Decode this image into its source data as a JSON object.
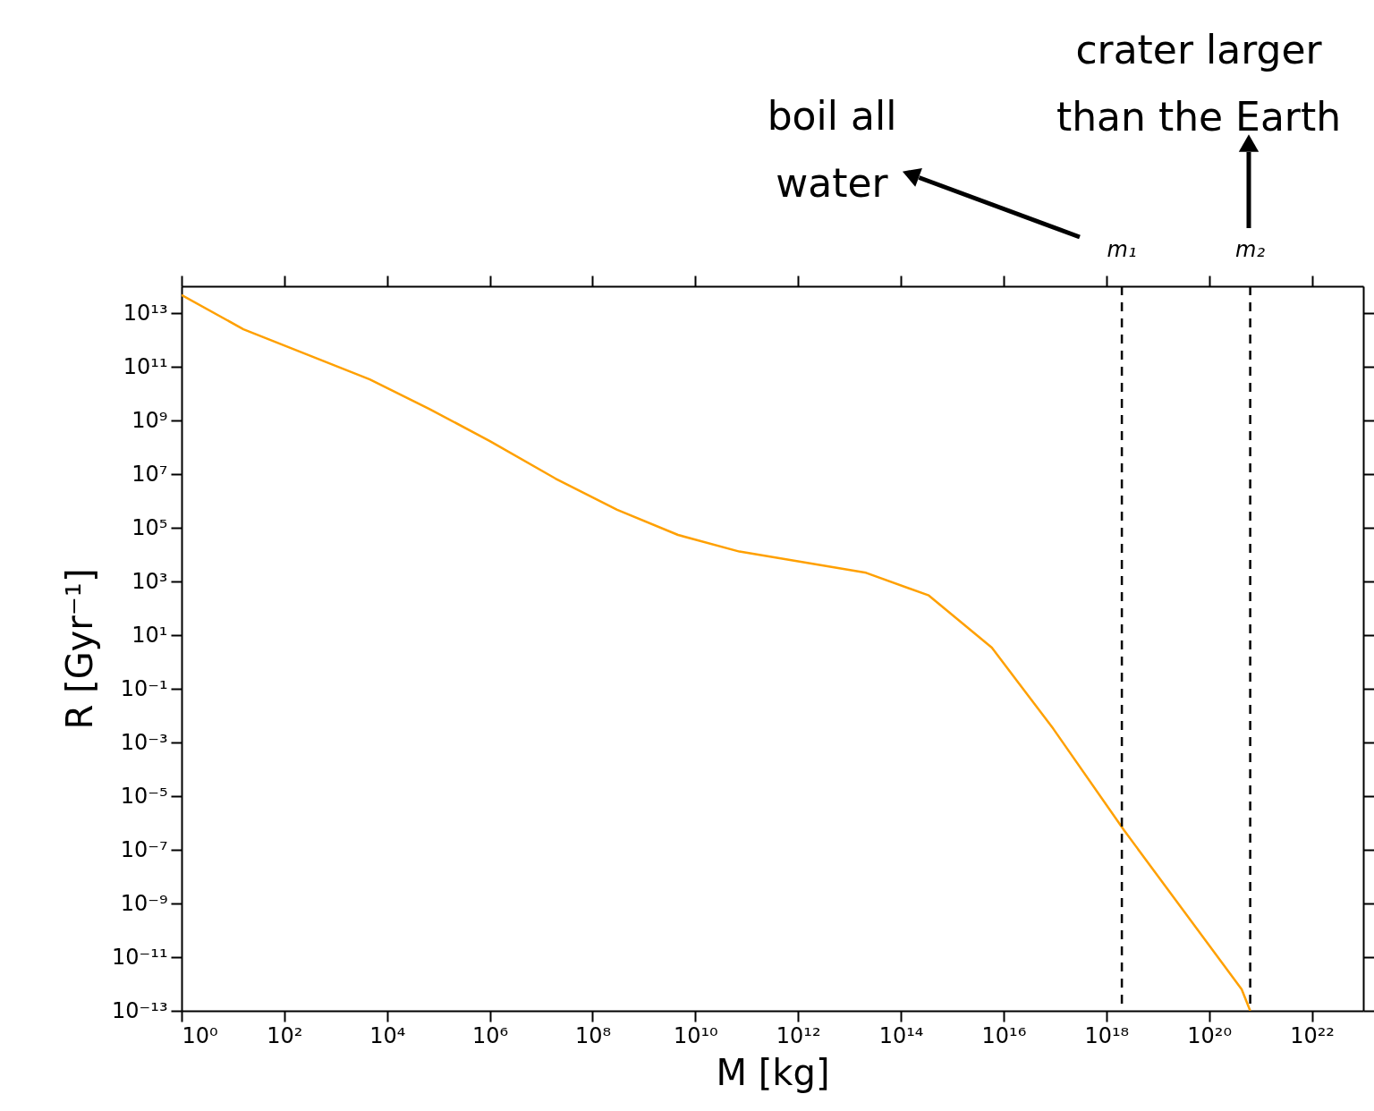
{
  "chart_data": {
    "type": "line",
    "xlabel": "M [kg]",
    "ylabel": "R [Gyr⁻¹]",
    "x": [
      1,
      16,
      4600.0,
      66000.0,
      1000000.0,
      19000000.0,
      300000000.0,
      4600000000.0,
      72000000000.0,
      21000000000000.0,
      350000000000000.0,
      5900000000000000.0,
      9.3e+16,
      2.2e+18,
      4.3e+20,
      6.3e+20
    ],
    "series": [
      {
        "color": "#ffa000",
        "values": [
          47000000000000.0,
          2500000000000.0,
          34000000000.0,
          2700000000.0,
          170000000.0,
          6800000.0,
          470000.0,
          54000.0,
          13000.0,
          2100.0,
          300.0,
          3.4,
          0.0032,
          5.4e-07,
          6.3e-13,
          1e-13
        ]
      }
    ],
    "log": "xy",
    "xlim": [
      1,
      1e+23
    ],
    "ylim": [
      1e-13,
      100000000000000.0
    ],
    "xticks": [
      {
        "value": 1,
        "label": "10⁰"
      },
      {
        "value": 100.0,
        "label": "10²"
      },
      {
        "value": 10000.0,
        "label": "10⁴"
      },
      {
        "value": 1000000.0,
        "label": "10⁶"
      },
      {
        "value": 100000000.0,
        "label": "10⁸"
      },
      {
        "value": 10000000000.0,
        "label": "10¹⁰"
      },
      {
        "value": 1000000000000.0,
        "label": "10¹²"
      },
      {
        "value": 100000000000000.0,
        "label": "10¹⁴"
      },
      {
        "value": 1e+16,
        "label": "10¹⁶"
      },
      {
        "value": 1e+18,
        "label": "10¹⁸"
      },
      {
        "value": 1e+20,
        "label": "10²⁰"
      },
      {
        "value": 1e+22,
        "label": "10²²"
      }
    ],
    "yticks": [
      {
        "value": 10000000000000.0,
        "label": "10¹³"
      },
      {
        "value": 100000000000.0,
        "label": "10¹¹"
      },
      {
        "value": 1000000000.0,
        "label": "10⁹"
      },
      {
        "value": 10000000.0,
        "label": "10⁷"
      },
      {
        "value": 100000.0,
        "label": "10⁵"
      },
      {
        "value": 1000.0,
        "label": "10³"
      },
      {
        "value": 10,
        "label": "10¹"
      },
      {
        "value": 0.1,
        "label": "10⁻¹"
      },
      {
        "value": 0.001,
        "label": "10⁻³"
      },
      {
        "value": 1e-05,
        "label": "10⁻⁵"
      },
      {
        "value": 1e-07,
        "label": "10⁻⁷"
      },
      {
        "value": 1e-09,
        "label": "10⁻⁹"
      },
      {
        "value": 1e-11,
        "label": "10⁻¹¹"
      },
      {
        "value": 1e-13,
        "label": "10⁻¹³"
      }
    ],
    "ref_lines": [
      {
        "axis": "x",
        "value": 2e+18,
        "label": "m₁",
        "color": "#000000",
        "line_style": "dashed"
      },
      {
        "axis": "x",
        "value": 6.3e+20,
        "label": "m₂",
        "color": "#000000",
        "line_style": "dashed"
      }
    ],
    "annotations": [
      "boil all water",
      "crater larger than the Earth"
    ]
  }
}
